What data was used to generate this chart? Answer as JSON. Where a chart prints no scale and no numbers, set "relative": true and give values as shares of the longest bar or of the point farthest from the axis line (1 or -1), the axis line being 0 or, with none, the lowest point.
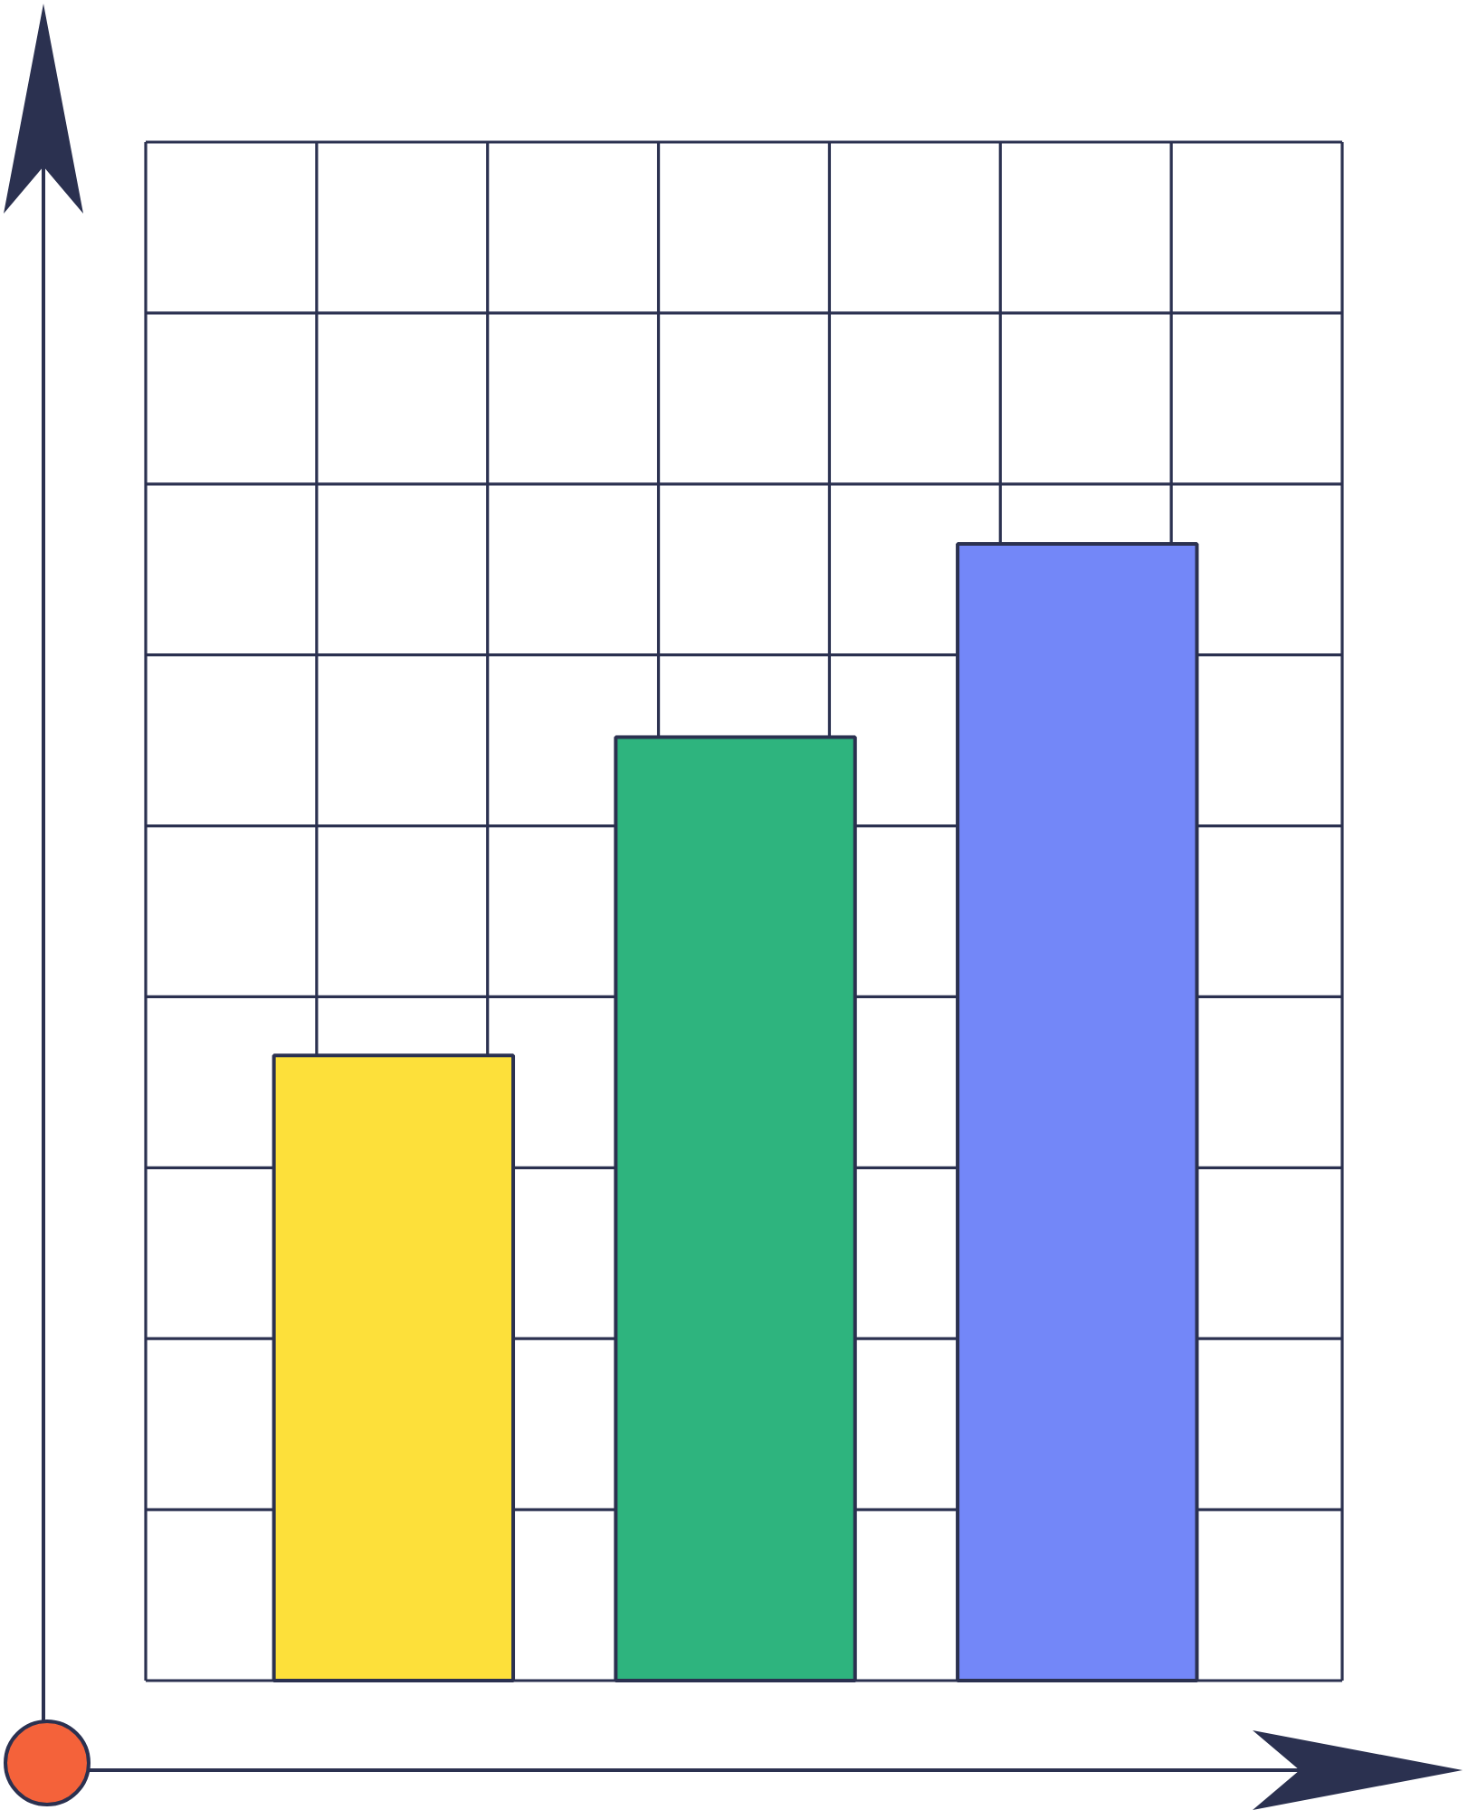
{
  "chart_data": {
    "type": "bar",
    "relative": true,
    "categories": [
      null,
      null,
      null
    ],
    "values": [
      0.55,
      0.83,
      1
    ],
    "colors": [
      "#fde03a",
      "#2eb47e",
      "#7387f8"
    ],
    "grid": true
  }
}
